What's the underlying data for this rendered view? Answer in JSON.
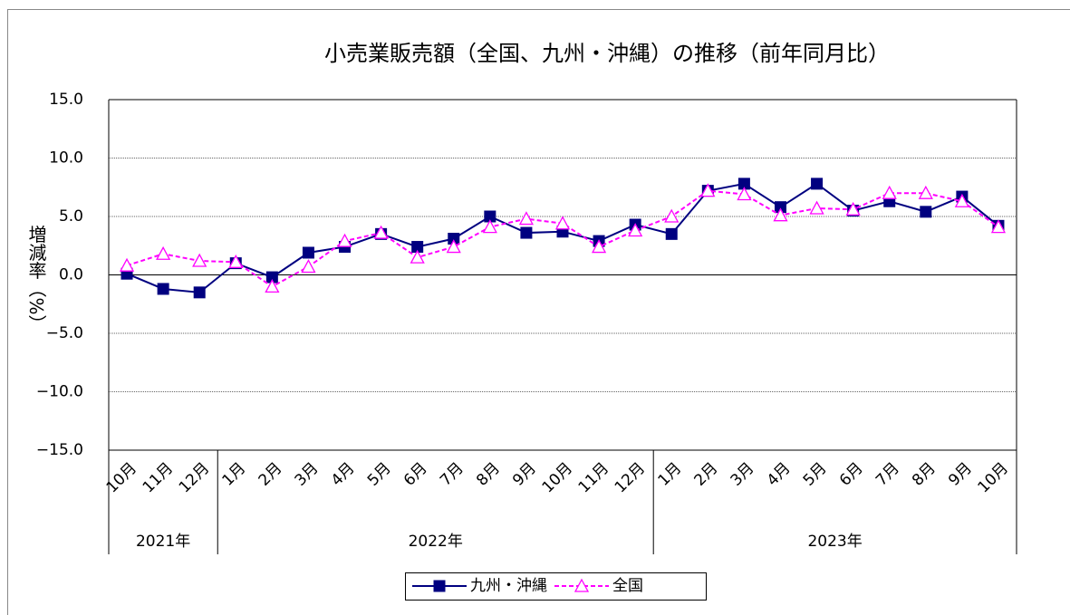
{
  "chart_data": {
    "type": "line",
    "title": "小売業販売額（全国、九州・沖縄）の推移（前年同月比）",
    "y_label": "増減率（%）",
    "category_groups": [
      {
        "label": "2021年",
        "categories": [
          "10月",
          "11月",
          "12月"
        ]
      },
      {
        "label": "2022年",
        "categories": [
          "1月",
          "2月",
          "3月",
          "4月",
          "5月",
          "6月",
          "7月",
          "8月",
          "9月",
          "10月",
          "11月",
          "12月"
        ]
      },
      {
        "label": "2023年",
        "categories": [
          "1月",
          "2月",
          "3月",
          "4月",
          "5月",
          "6月",
          "7月",
          "8月",
          "9月",
          "10月"
        ]
      }
    ],
    "series": [
      {
        "name": "九州・沖縄",
        "color": "#000080",
        "marker": "square",
        "dash": false,
        "values": [
          0.1,
          -1.2,
          -1.5,
          1.0,
          -0.2,
          1.9,
          2.4,
          3.5,
          2.4,
          3.1,
          5.0,
          3.6,
          3.7,
          2.9,
          4.3,
          3.5,
          7.2,
          7.8,
          5.8,
          7.8,
          5.5,
          6.3,
          5.4,
          6.7,
          4.2
        ]
      },
      {
        "name": "全国",
        "color": "#ff00ff",
        "marker": "triangle",
        "dash": true,
        "values": [
          0.8,
          1.8,
          1.2,
          1.1,
          -1.0,
          0.7,
          2.9,
          3.6,
          1.5,
          2.4,
          4.1,
          4.8,
          4.4,
          2.4,
          3.8,
          5.0,
          7.2,
          6.9,
          5.1,
          5.7,
          5.6,
          7.0,
          7.0,
          6.3,
          4.1
        ]
      }
    ],
    "ylim": [
      -15,
      15
    ],
    "yticks": [
      {
        "value": -15,
        "label": "−15.0"
      },
      {
        "value": -10,
        "label": "−10.0"
      },
      {
        "value": -5,
        "label": "−5.0"
      },
      {
        "value": 0,
        "label": "0.0"
      },
      {
        "value": 5,
        "label": "5.0"
      },
      {
        "value": 10,
        "label": "10.0"
      },
      {
        "value": 15,
        "label": "15.0"
      }
    ],
    "grid": true,
    "legend": "bottom"
  }
}
